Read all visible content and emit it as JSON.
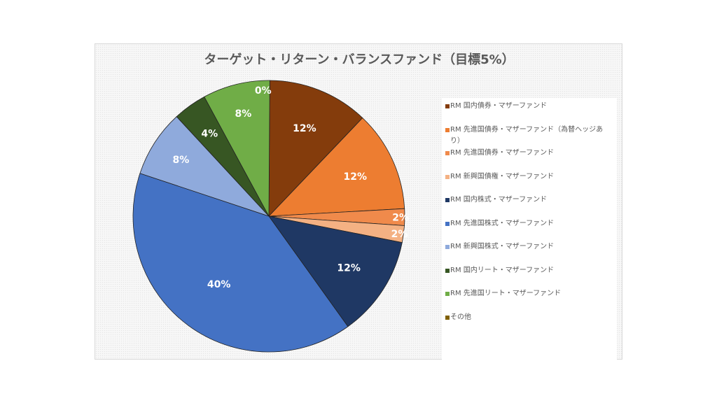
{
  "chart_data": {
    "type": "pie",
    "title": "ターゲット・リターン・バランスファンド（目標5%）",
    "legend_position": "right",
    "slices": [
      {
        "name": "その他",
        "value": 0,
        "label": "0%",
        "color": "#806000"
      },
      {
        "name": "RM 国内債券・マザーファンド",
        "value": 12,
        "label": "12%",
        "color": "#843c0c"
      },
      {
        "name": "RM 先進国債券・マザーファンド（為替ヘッジあり）",
        "value": 12,
        "label": "12%",
        "color": "#ed7d31"
      },
      {
        "name": "RM 先進国債券・マザーファンド",
        "value": 2,
        "label": "2%",
        "color": "#f08a4b"
      },
      {
        "name": "RM 新興国債権・マザーファンド",
        "value": 2,
        "label": "2%",
        "color": "#f4b183"
      },
      {
        "name": "RM 国内株式・マザーファンド",
        "value": 12,
        "label": "12%",
        "color": "#1f3864"
      },
      {
        "name": "RM 先進国株式・マザーファンド",
        "value": 40,
        "label": "40%",
        "color": "#4472c4"
      },
      {
        "name": "RM 新興国株式・マザーファンド",
        "value": 8,
        "label": "8%",
        "color": "#8faadc"
      },
      {
        "name": "RM 国内リート・マザーファンド",
        "value": 4,
        "label": "4%",
        "color": "#375623"
      },
      {
        "name": "RM 先進国リート・マザーファンド",
        "value": 8,
        "label": "8%",
        "color": "#70ad47"
      }
    ],
    "legend": [
      {
        "label": "RM 国内債券・マザーファンド",
        "color": "#843c0c"
      },
      {
        "label": "RM 先進国債券・マザーファンド（為替ヘッジあり）",
        "color": "#ed7d31"
      },
      {
        "label": "RM 先進国債券・マザーファンド",
        "color": "#f08a4b"
      },
      {
        "label": "RM 新興国債権・マザーファンド",
        "color": "#f4b183"
      },
      {
        "label": "RM 国内株式・マザーファンド",
        "color": "#1f3864"
      },
      {
        "label": "RM 先進国株式・マザーファンド",
        "color": "#4472c4"
      },
      {
        "label": "RM 新興国株式・マザーファンド",
        "color": "#8faadc"
      },
      {
        "label": "RM 国内リート・マザーファンド",
        "color": "#375623"
      },
      {
        "label": "RM 先進国リート・マザーファンド",
        "color": "#70ad47"
      },
      {
        "label": "その他",
        "color": "#806000"
      }
    ]
  }
}
